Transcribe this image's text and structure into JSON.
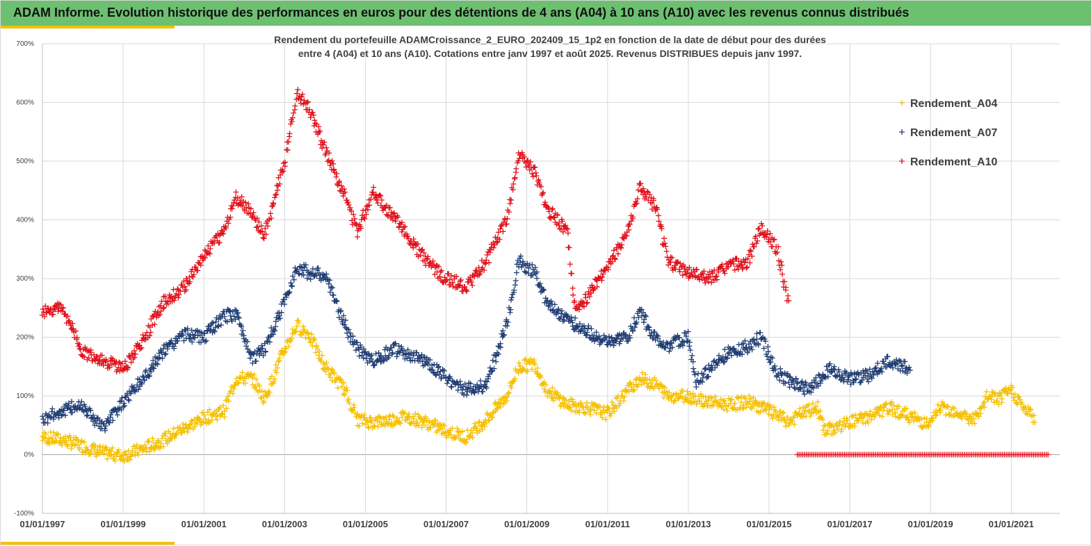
{
  "header": {
    "title": "ADAM Informe. Evolution historique des performances en euros pour des détentions de 4 ans (A04) à 10 ans (A10) avec les revenus connus distribués"
  },
  "colors": {
    "header": "#6cc070",
    "accent": "#f2c200",
    "a04": "#f5c000",
    "a07": "#1f3c73",
    "a10": "#e0101a",
    "grid": "#d9d9d9",
    "axis": "#bfbfbf"
  },
  "chart_data": {
    "type": "scatter",
    "title_lines": [
      "Rendement du portefeuille ADAMCroissance_2_EURO_202409_15_1p2  en fonction de la date de début pour des durées",
      "entre 4 (A04) et 10 ans (A10). Cotations  entre janv 1997 et août 2025. Revenus DISTRIBUES depuis janv 1997."
    ],
    "x_start": "01/01/1997",
    "x_end": "01/07/2021",
    "x_tick_labels": [
      "01/01/1997",
      "01/01/1999",
      "01/01/2001",
      "01/01/2003",
      "01/01/2005",
      "01/01/2007",
      "01/01/2009",
      "01/01/2011",
      "01/01/2013",
      "01/01/2015",
      "01/01/2017",
      "01/01/2019",
      "01/01/2021"
    ],
    "y_ticks": [
      -100,
      0,
      100,
      200,
      300,
      400,
      500,
      600,
      700
    ],
    "y_tick_labels": [
      "-100%",
      "0%",
      "100%",
      "200%",
      "300%",
      "400%",
      "500%",
      "600%",
      "700%"
    ],
    "ylim": [
      -100,
      700
    ],
    "grid": true,
    "legend_position": "right",
    "marker": "+",
    "series": [
      {
        "name": "Rendement_A04",
        "color": "#f5c000",
        "points": [
          [
            1997.0,
            30
          ],
          [
            1997.5,
            25
          ],
          [
            1998.0,
            15
          ],
          [
            1998.5,
            3
          ],
          [
            1999.0,
            -2
          ],
          [
            1999.5,
            10
          ],
          [
            2000.0,
            25
          ],
          [
            2000.5,
            45
          ],
          [
            2001.0,
            62
          ],
          [
            2001.5,
            75
          ],
          [
            2001.8,
            130
          ],
          [
            2002.2,
            130
          ],
          [
            2002.5,
            95
          ],
          [
            2003.0,
            180
          ],
          [
            2003.3,
            220
          ],
          [
            2003.6,
            205
          ],
          [
            2004.0,
            150
          ],
          [
            2004.5,
            110
          ],
          [
            2004.8,
            60
          ],
          [
            2005.2,
            55
          ],
          [
            2005.7,
            60
          ],
          [
            2006.0,
            65
          ],
          [
            2006.5,
            55
          ],
          [
            2007.0,
            40
          ],
          [
            2007.5,
            30
          ],
          [
            2008.0,
            60
          ],
          [
            2008.5,
            100
          ],
          [
            2008.8,
            150
          ],
          [
            2009.2,
            155
          ],
          [
            2009.5,
            110
          ],
          [
            2010.0,
            85
          ],
          [
            2010.5,
            80
          ],
          [
            2011.0,
            70
          ],
          [
            2011.5,
            110
          ],
          [
            2011.8,
            130
          ],
          [
            2012.2,
            120
          ],
          [
            2012.5,
            100
          ],
          [
            2013.0,
            100
          ],
          [
            2013.5,
            90
          ],
          [
            2014.0,
            85
          ],
          [
            2014.5,
            90
          ],
          [
            2015.0,
            75
          ],
          [
            2015.5,
            55
          ],
          [
            2015.8,
            70
          ],
          [
            2016.2,
            80
          ],
          [
            2016.4,
            40
          ],
          [
            2017.0,
            55
          ],
          [
            2017.5,
            65
          ],
          [
            2018.0,
            80
          ],
          [
            2018.5,
            65
          ],
          [
            2019.0,
            50
          ],
          [
            2019.2,
            80
          ],
          [
            2019.6,
            75
          ],
          [
            2020.0,
            60
          ],
          [
            2020.2,
            65
          ],
          [
            2020.4,
            100
          ],
          [
            2020.7,
            95
          ],
          [
            2021.0,
            110
          ],
          [
            2021.3,
            80
          ],
          [
            2021.6,
            60
          ]
        ]
      },
      {
        "name": "Rendement_A07",
        "color": "#1f3c73",
        "points": [
          [
            1997.0,
            60
          ],
          [
            1997.5,
            75
          ],
          [
            1998.0,
            85
          ],
          [
            1998.5,
            45
          ],
          [
            1999.0,
            90
          ],
          [
            1999.5,
            130
          ],
          [
            2000.0,
            175
          ],
          [
            2000.5,
            205
          ],
          [
            2001.0,
            200
          ],
          [
            2001.5,
            235
          ],
          [
            2001.8,
            240
          ],
          [
            2002.2,
            165
          ],
          [
            2002.5,
            180
          ],
          [
            2003.0,
            260
          ],
          [
            2003.3,
            320
          ],
          [
            2003.6,
            310
          ],
          [
            2004.0,
            305
          ],
          [
            2004.5,
            220
          ],
          [
            2004.8,
            180
          ],
          [
            2005.2,
            160
          ],
          [
            2005.7,
            180
          ],
          [
            2006.0,
            170
          ],
          [
            2006.5,
            160
          ],
          [
            2007.0,
            130
          ],
          [
            2007.5,
            110
          ],
          [
            2008.0,
            120
          ],
          [
            2008.5,
            220
          ],
          [
            2008.8,
            330
          ],
          [
            2009.2,
            310
          ],
          [
            2009.5,
            260
          ],
          [
            2010.0,
            230
          ],
          [
            2010.5,
            210
          ],
          [
            2011.0,
            190
          ],
          [
            2011.5,
            200
          ],
          [
            2011.8,
            245
          ],
          [
            2012.2,
            195
          ],
          [
            2012.5,
            185
          ],
          [
            2013.0,
            200
          ],
          [
            2013.2,
            125
          ],
          [
            2013.6,
            150
          ],
          [
            2014.0,
            175
          ],
          [
            2014.5,
            185
          ],
          [
            2014.8,
            200
          ],
          [
            2015.2,
            140
          ],
          [
            2015.5,
            125
          ],
          [
            2016.0,
            110
          ],
          [
            2016.5,
            145
          ],
          [
            2017.0,
            130
          ],
          [
            2017.5,
            135
          ],
          [
            2018.0,
            160
          ],
          [
            2018.5,
            145
          ]
        ]
      },
      {
        "name": "Rendement_A10",
        "color": "#e0101a",
        "points": [
          [
            1997.0,
            245
          ],
          [
            1997.5,
            250
          ],
          [
            1998.0,
            175
          ],
          [
            1998.5,
            160
          ],
          [
            1999.0,
            145
          ],
          [
            1999.5,
            195
          ],
          [
            2000.0,
            260
          ],
          [
            2000.5,
            285
          ],
          [
            2001.0,
            340
          ],
          [
            2001.5,
            380
          ],
          [
            2001.8,
            440
          ],
          [
            2002.2,
            410
          ],
          [
            2002.5,
            370
          ],
          [
            2003.0,
            500
          ],
          [
            2003.3,
            620
          ],
          [
            2003.6,
            590
          ],
          [
            2004.0,
            520
          ],
          [
            2004.5,
            440
          ],
          [
            2004.8,
            380
          ],
          [
            2005.2,
            450
          ],
          [
            2005.5,
            420
          ],
          [
            2006.0,
            380
          ],
          [
            2006.5,
            330
          ],
          [
            2007.0,
            300
          ],
          [
            2007.5,
            285
          ],
          [
            2008.0,
            330
          ],
          [
            2008.5,
            400
          ],
          [
            2008.8,
            510
          ],
          [
            2009.2,
            480
          ],
          [
            2009.5,
            420
          ],
          [
            2010.0,
            380
          ],
          [
            2010.2,
            240
          ],
          [
            2010.5,
            270
          ],
          [
            2011.0,
            320
          ],
          [
            2011.5,
            380
          ],
          [
            2011.8,
            455
          ],
          [
            2012.2,
            420
          ],
          [
            2012.5,
            330
          ],
          [
            2013.0,
            310
          ],
          [
            2013.5,
            300
          ],
          [
            2014.0,
            320
          ],
          [
            2014.5,
            330
          ],
          [
            2014.8,
            390
          ],
          [
            2015.2,
            350
          ],
          [
            2015.5,
            250
          ]
        ]
      },
      {
        "name": "Rendement_A10_zero",
        "color": "#e0101a",
        "points_from": 2015.7,
        "points_to": 2021.95,
        "value": 0
      }
    ]
  },
  "legend": [
    {
      "label": "Rendement_A04",
      "color": "#f5c000"
    },
    {
      "label": "Rendement_A07",
      "color": "#1f3c73"
    },
    {
      "label": "Rendement_A10",
      "color": "#e0101a"
    }
  ]
}
